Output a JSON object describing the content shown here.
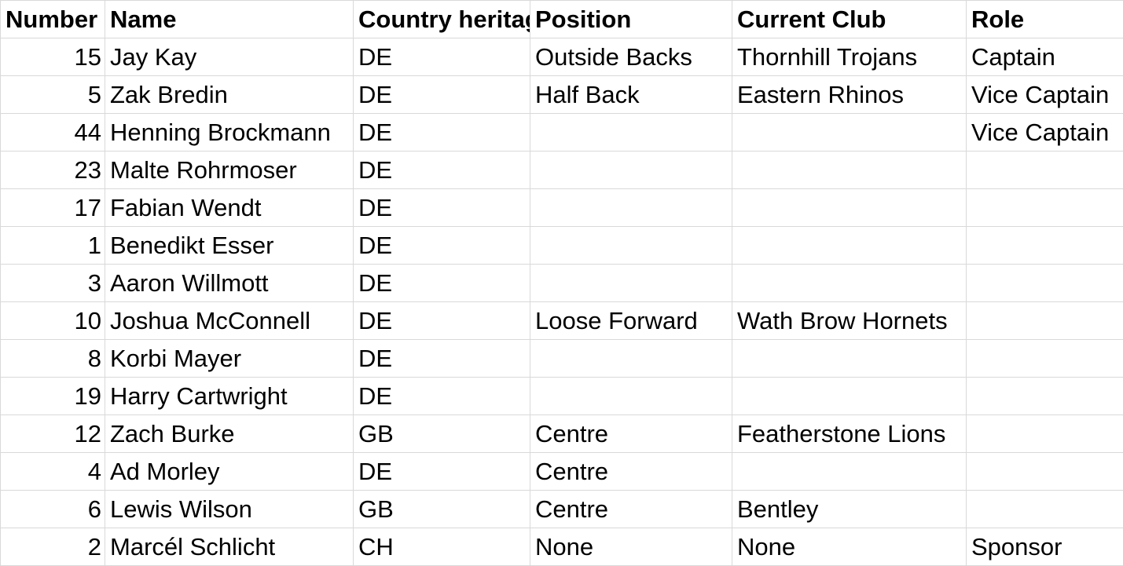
{
  "columns": {
    "number": "Number",
    "name": "Name",
    "country": "Country heritage",
    "position": "Position",
    "club": "Current Club",
    "role": "Role"
  },
  "rows": [
    {
      "number": "15",
      "name": "Jay Kay",
      "country": "DE",
      "position": "Outside Backs",
      "club": "Thornhill Trojans",
      "role": "Captain"
    },
    {
      "number": "5",
      "name": "Zak Bredin",
      "country": "DE",
      "position": "Half Back",
      "club": "Eastern Rhinos",
      "role": "Vice Captain"
    },
    {
      "number": "44",
      "name": "Henning Brockmann",
      "country": "DE",
      "position": "",
      "club": "",
      "role": "Vice Captain"
    },
    {
      "number": "23",
      "name": "Malte Rohrmoser",
      "country": "DE",
      "position": "",
      "club": "",
      "role": ""
    },
    {
      "number": "17",
      "name": "Fabian Wendt",
      "country": "DE",
      "position": "",
      "club": "",
      "role": ""
    },
    {
      "number": "1",
      "name": "Benedikt Esser",
      "country": "DE",
      "position": "",
      "club": "",
      "role": ""
    },
    {
      "number": "3",
      "name": "Aaron Willmott",
      "country": "DE",
      "position": "",
      "club": "",
      "role": ""
    },
    {
      "number": "10",
      "name": "Joshua McConnell",
      "country": "DE",
      "position": "Loose Forward",
      "club": "Wath Brow Hornets",
      "role": ""
    },
    {
      "number": "8",
      "name": "Korbi Mayer",
      "country": "DE",
      "position": "",
      "club": "",
      "role": ""
    },
    {
      "number": "19",
      "name": "Harry Cartwright",
      "country": "DE",
      "position": "",
      "club": "",
      "role": ""
    },
    {
      "number": "12",
      "name": "Zach Burke",
      "country": "GB",
      "position": "Centre",
      "club": "Featherstone Lions",
      "role": ""
    },
    {
      "number": "4",
      "name": "Ad Morley",
      "country": "DE",
      "position": "Centre",
      "club": "",
      "role": ""
    },
    {
      "number": "6",
      "name": "Lewis Wilson",
      "country": "GB",
      "position": "Centre",
      "club": "Bentley",
      "role": ""
    },
    {
      "number": "2",
      "name": "Marcél Schlicht",
      "country": "CH",
      "position": "None",
      "club": "None",
      "role": "Sponsor"
    }
  ]
}
